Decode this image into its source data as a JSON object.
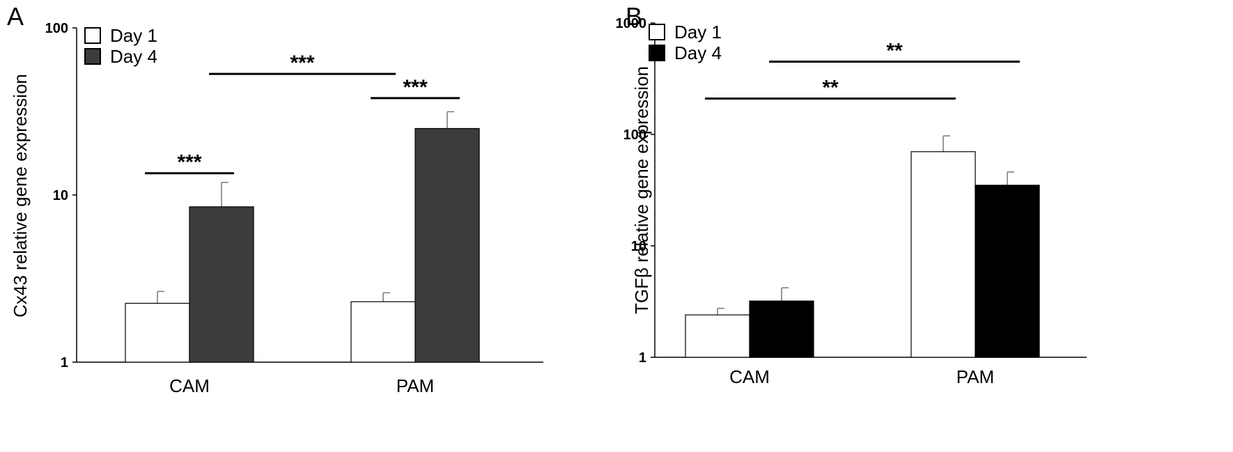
{
  "chart_data": [
    {
      "panel": "A",
      "type": "bar",
      "scale": "log",
      "ylabel": "Cx43 relative gene expression",
      "ylim": [
        1,
        100
      ],
      "yticks": [
        "1",
        "10",
        "100"
      ],
      "categories": [
        "CAM",
        "PAM"
      ],
      "series": [
        {
          "name": "Day 1",
          "fill": "#ffffff",
          "values": [
            2.25,
            2.3
          ],
          "errors": [
            0.4,
            0.3
          ]
        },
        {
          "name": "Day 4",
          "fill": "#3c3c3c",
          "values": [
            8.5,
            25
          ],
          "errors": [
            3.4,
            6.5
          ]
        }
      ],
      "significance": [
        {
          "label": "***",
          "from": {
            "category": 0,
            "series": 0
          },
          "to": {
            "category": 0,
            "series": 1
          },
          "y": 13.5
        },
        {
          "label": "***",
          "from": {
            "category": 1,
            "series": 0
          },
          "to": {
            "category": 1,
            "series": 1
          },
          "y": 38
        },
        {
          "label": "***",
          "from": {
            "category": 0,
            "series": 1
          },
          "to": {
            "category": 1,
            "series": 0
          },
          "y": 53
        }
      ]
    },
    {
      "panel": "B",
      "type": "bar",
      "scale": "log",
      "ylabel": "TGFβ relative gene expression",
      "ylim": [
        1,
        1000
      ],
      "yticks": [
        "1",
        "10",
        "100",
        "1000"
      ],
      "categories": [
        "CAM",
        "PAM"
      ],
      "series": [
        {
          "name": "Day 1",
          "fill": "#ffffff",
          "values": [
            2.4,
            70
          ],
          "errors": [
            0.35,
            27
          ]
        },
        {
          "name": "Day 4",
          "fill": "#000000",
          "values": [
            3.2,
            35
          ],
          "errors": [
            1.0,
            11
          ]
        }
      ],
      "significance": [
        {
          "label": "**",
          "from": {
            "category": 0,
            "series": 0
          },
          "to": {
            "category": 1,
            "series": 0
          },
          "y": 210
        },
        {
          "label": "**",
          "from": {
            "category": 0,
            "series": 1
          },
          "to": {
            "category": 1,
            "series": 1
          },
          "y": 450
        }
      ]
    }
  ]
}
